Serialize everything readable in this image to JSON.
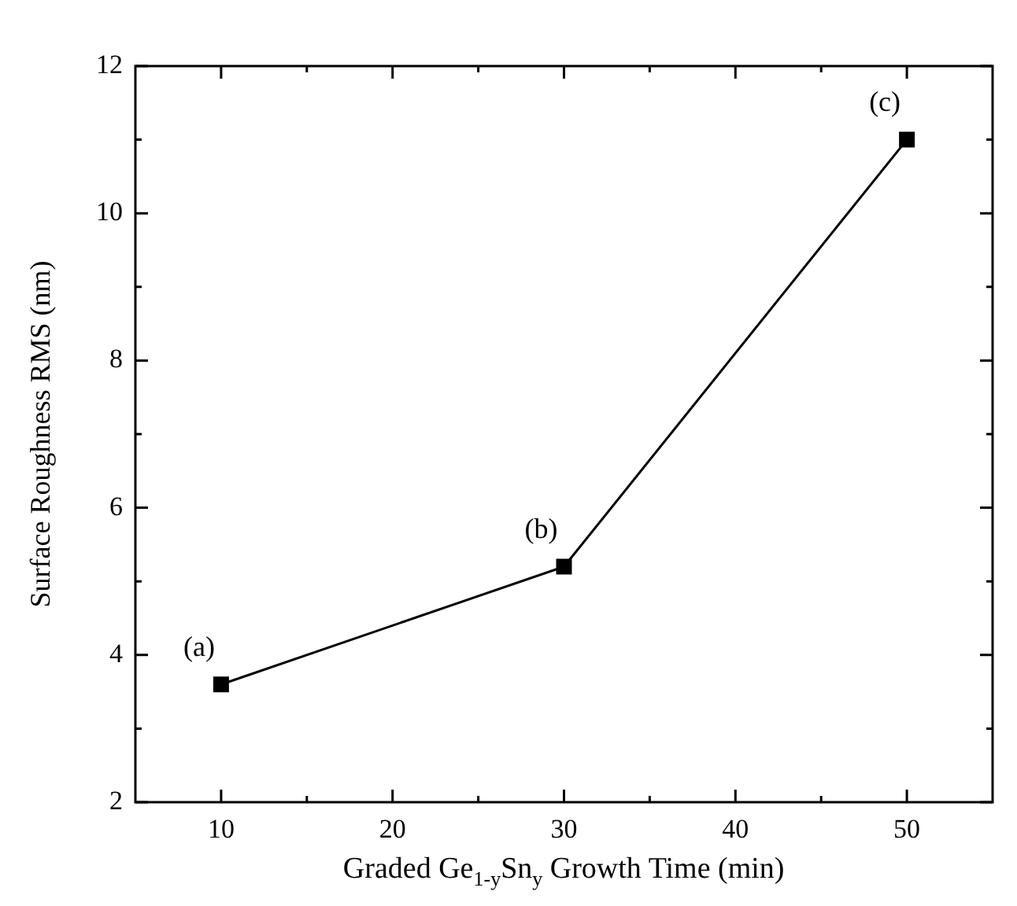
{
  "chart_data": {
    "type": "line",
    "xlabel": "Graded Ge$_{1-y}$Sn$_{y}$ Growth Time (min)",
    "ylabel": "Surface Roughness RMS (nm)",
    "x": [
      10,
      30,
      50
    ],
    "series": [
      {
        "color": "#000000",
        "values": [
          3.6,
          5.2,
          11.0
        ]
      }
    ],
    "xlim": [
      5,
      55
    ],
    "xticks": [
      10,
      {
        "value": 15,
        "label": null
      },
      20,
      {
        "value": 25,
        "label": null
      },
      30,
      {
        "value": 35,
        "label": null
      },
      40,
      {
        "value": 45,
        "label": null
      },
      50
    ],
    "ylim": [
      2,
      12
    ],
    "yticks": [
      2,
      {
        "value": 3,
        "label": null
      },
      4,
      {
        "value": 5,
        "label": null
      },
      6,
      {
        "value": 7,
        "label": null
      },
      8,
      {
        "value": 9,
        "label": null
      },
      10,
      {
        "value": 11,
        "label": null
      },
      12
    ],
    "marker": "square",
    "line_style": "solid",
    "annotations": [
      {
        "text": "(a)",
        "x": 10,
        "y": 3.6
      },
      {
        "text": "(b)",
        "x": 30,
        "y": 5.2
      },
      {
        "text": "(c)",
        "x": 50,
        "y": 11.0
      }
    ]
  }
}
